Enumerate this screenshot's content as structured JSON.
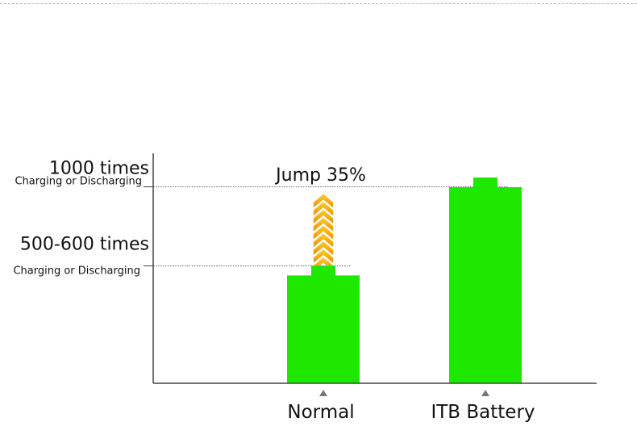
{
  "chart_data": {
    "type": "bar",
    "categories": [
      "Normal",
      "ITB Battery"
    ],
    "values": [
      550,
      1000
    ],
    "y_levels": [
      {
        "value": 550,
        "label": "500-600 times",
        "sublabel": "Charging or Discharging"
      },
      {
        "value": 1000,
        "label": "1000 times",
        "sublabel": "Charging or Discharging"
      }
    ],
    "annotation": "Jump 35%",
    "ylim": [
      0,
      1100
    ],
    "grid": false,
    "colors": {
      "bar": "#1ee800",
      "axis": "#444444",
      "arrow_top": "#ffd21a",
      "arrow_bottom": "#f08a10",
      "marker": "#777777"
    }
  }
}
